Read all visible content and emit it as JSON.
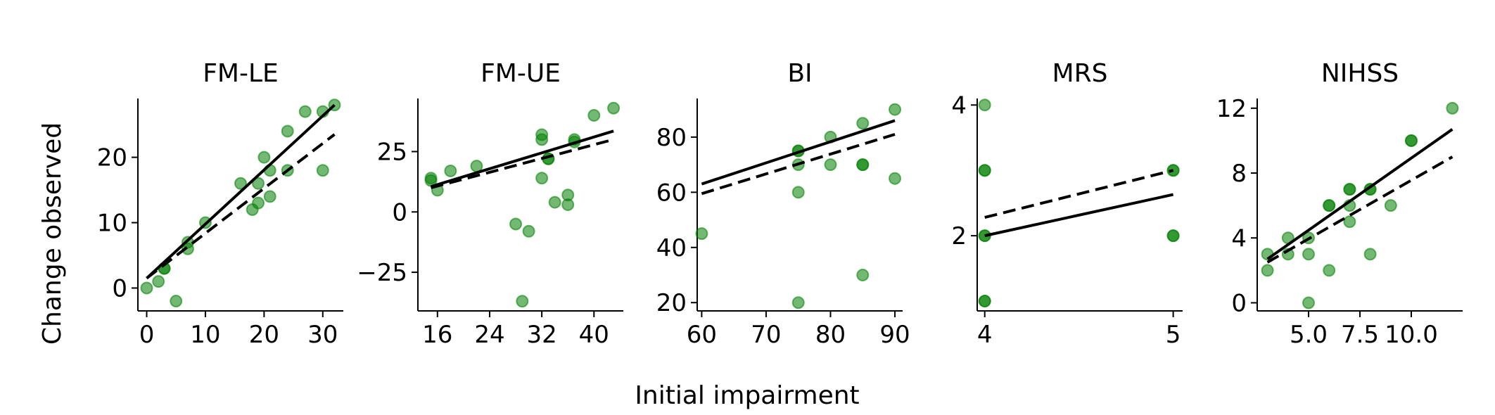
{
  "figure": {
    "ylabel": "Change observed",
    "xlabel": "Initial impairment",
    "colors": {
      "point": "#008000",
      "line": "#000000"
    }
  },
  "chart_data": [
    {
      "type": "scatter",
      "title": "FM-LE",
      "xlim": [
        -1.5,
        33.5
      ],
      "ylim": [
        -3.5,
        29
      ],
      "xticks": [
        0,
        10,
        20,
        30
      ],
      "yticks": [
        0,
        10,
        20
      ],
      "points": [
        [
          0,
          0
        ],
        [
          2,
          1
        ],
        [
          3,
          3
        ],
        [
          3,
          3
        ],
        [
          5,
          -2
        ],
        [
          7,
          6
        ],
        [
          7,
          7
        ],
        [
          10,
          10
        ],
        [
          16,
          16
        ],
        [
          18,
          12
        ],
        [
          19,
          13
        ],
        [
          19,
          16
        ],
        [
          20,
          20
        ],
        [
          21,
          14
        ],
        [
          21,
          18
        ],
        [
          24,
          18
        ],
        [
          24,
          24
        ],
        [
          27,
          27
        ],
        [
          30,
          27
        ],
        [
          30,
          18
        ],
        [
          32,
          28
        ]
      ],
      "fit_solid": [
        [
          0,
          1.5
        ],
        [
          32,
          28
        ]
      ],
      "fit_dashed": [
        [
          0,
          1.5
        ],
        [
          32,
          23.5
        ]
      ]
    },
    {
      "type": "scatter",
      "title": "FM-UE",
      "xlim": [
        13,
        44.5
      ],
      "ylim": [
        -41,
        47
      ],
      "xticks": [
        16,
        24,
        32,
        40
      ],
      "yticks": [
        -25,
        0,
        25
      ],
      "points": [
        [
          15,
          14
        ],
        [
          15,
          13
        ],
        [
          16,
          9
        ],
        [
          18,
          17
        ],
        [
          22,
          19
        ],
        [
          28,
          -5
        ],
        [
          29,
          -37
        ],
        [
          30,
          -8
        ],
        [
          32,
          32
        ],
        [
          32,
          30
        ],
        [
          32,
          14
        ],
        [
          33,
          22
        ],
        [
          33,
          22
        ],
        [
          34,
          4
        ],
        [
          36,
          3
        ],
        [
          36,
          7
        ],
        [
          37,
          30
        ],
        [
          37,
          29
        ],
        [
          40,
          40
        ],
        [
          43,
          43
        ]
      ],
      "fit_solid": [
        [
          15,
          10.5
        ],
        [
          43,
          33.5
        ]
      ],
      "fit_dashed": [
        [
          15,
          10
        ],
        [
          43,
          30
        ]
      ]
    },
    {
      "type": "scatter",
      "title": "BI",
      "xlim": [
        59.3,
        91.2
      ],
      "ylim": [
        17,
        94
      ],
      "xticks": [
        60,
        70,
        80,
        90
      ],
      "yticks": [
        20,
        40,
        60,
        80
      ],
      "points": [
        [
          60,
          45
        ],
        [
          75,
          75
        ],
        [
          75,
          75
        ],
        [
          75,
          70
        ],
        [
          75,
          60
        ],
        [
          75,
          20
        ],
        [
          80,
          80
        ],
        [
          80,
          70
        ],
        [
          85,
          85
        ],
        [
          85,
          70
        ],
        [
          85,
          70
        ],
        [
          85,
          30
        ],
        [
          90,
          90
        ],
        [
          90,
          65
        ]
      ],
      "fit_solid": [
        [
          60,
          63
        ],
        [
          90,
          86
        ]
      ],
      "fit_dashed": [
        [
          60,
          59.5
        ],
        [
          90,
          81
        ]
      ]
    },
    {
      "type": "scatter",
      "title": "MRS",
      "xlim": [
        3.96,
        5.05
      ],
      "ylim": [
        0.85,
        4.1
      ],
      "xticks": [
        4,
        5
      ],
      "yticks": [
        2,
        4
      ],
      "points": [
        [
          4,
          4
        ],
        [
          4,
          3
        ],
        [
          4,
          3
        ],
        [
          4,
          2
        ],
        [
          4,
          2
        ],
        [
          4,
          1
        ],
        [
          4,
          1
        ],
        [
          5,
          3
        ],
        [
          5,
          3
        ],
        [
          5,
          2
        ],
        [
          5,
          2
        ]
      ],
      "fit_solid": [
        [
          4,
          2
        ],
        [
          5,
          2.63
        ]
      ],
      "fit_dashed": [
        [
          4,
          2.28
        ],
        [
          5,
          3
        ]
      ]
    },
    {
      "type": "scatter",
      "title": "NIHSS",
      "xlim": [
        2.5,
        12.5
      ],
      "ylim": [
        -0.5,
        12.6
      ],
      "xticks": [
        5,
        7.5,
        10
      ],
      "ytick_labels_x": [
        "5.0",
        "7.5",
        "10.0"
      ],
      "yticks": [
        0,
        4,
        8,
        12
      ],
      "points": [
        [
          3,
          3
        ],
        [
          3,
          2
        ],
        [
          4,
          4
        ],
        [
          4,
          3
        ],
        [
          5,
          4
        ],
        [
          5,
          3
        ],
        [
          5,
          0
        ],
        [
          6,
          6
        ],
        [
          6,
          6
        ],
        [
          6,
          2
        ],
        [
          7,
          7
        ],
        [
          7,
          7
        ],
        [
          7,
          6
        ],
        [
          7,
          5
        ],
        [
          8,
          7
        ],
        [
          8,
          7
        ],
        [
          8,
          3
        ],
        [
          9,
          6
        ],
        [
          10,
          10
        ],
        [
          10,
          10
        ],
        [
          12,
          12
        ]
      ],
      "fit_solid": [
        [
          3,
          2.7
        ],
        [
          12,
          10.7
        ]
      ],
      "fit_dashed": [
        [
          3,
          2.5
        ],
        [
          12,
          9
        ]
      ]
    }
  ]
}
